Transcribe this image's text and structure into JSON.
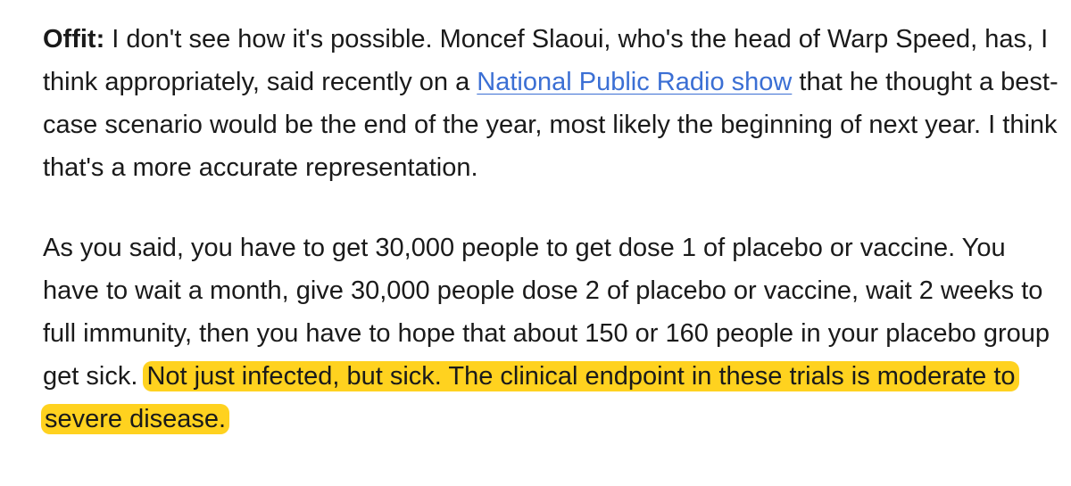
{
  "article": {
    "paragraph_1": {
      "speaker": "Offit:",
      "text_before_link": " I don't see how it's possible. Moncef Slaoui, who's the head of Warp Speed, has, I think appropriately, said recently on a ",
      "link_text": "National Public Radio show",
      "text_after_link": " that he thought a best-case scenario would be the end of the year, most likely the beginning of next year. I think that's a more accurate representation."
    },
    "paragraph_2": {
      "text": "As you said, you have to get 30,000 people to get dose 1 of placebo or vaccine. You have to wait a month, give 30,000 people dose 2 of placebo or vaccine, wait 2 weeks to full immunity, then you have to hope that about 150 or 160 people in your placebo group get sick.",
      "highlighted_text": "Not just infected, but sick. The clinical endpoint in these trials is moderate to severe disease."
    }
  },
  "colors": {
    "text": "#1a1a1a",
    "link": "#3b6fd4",
    "highlight": "#ffd21f"
  }
}
